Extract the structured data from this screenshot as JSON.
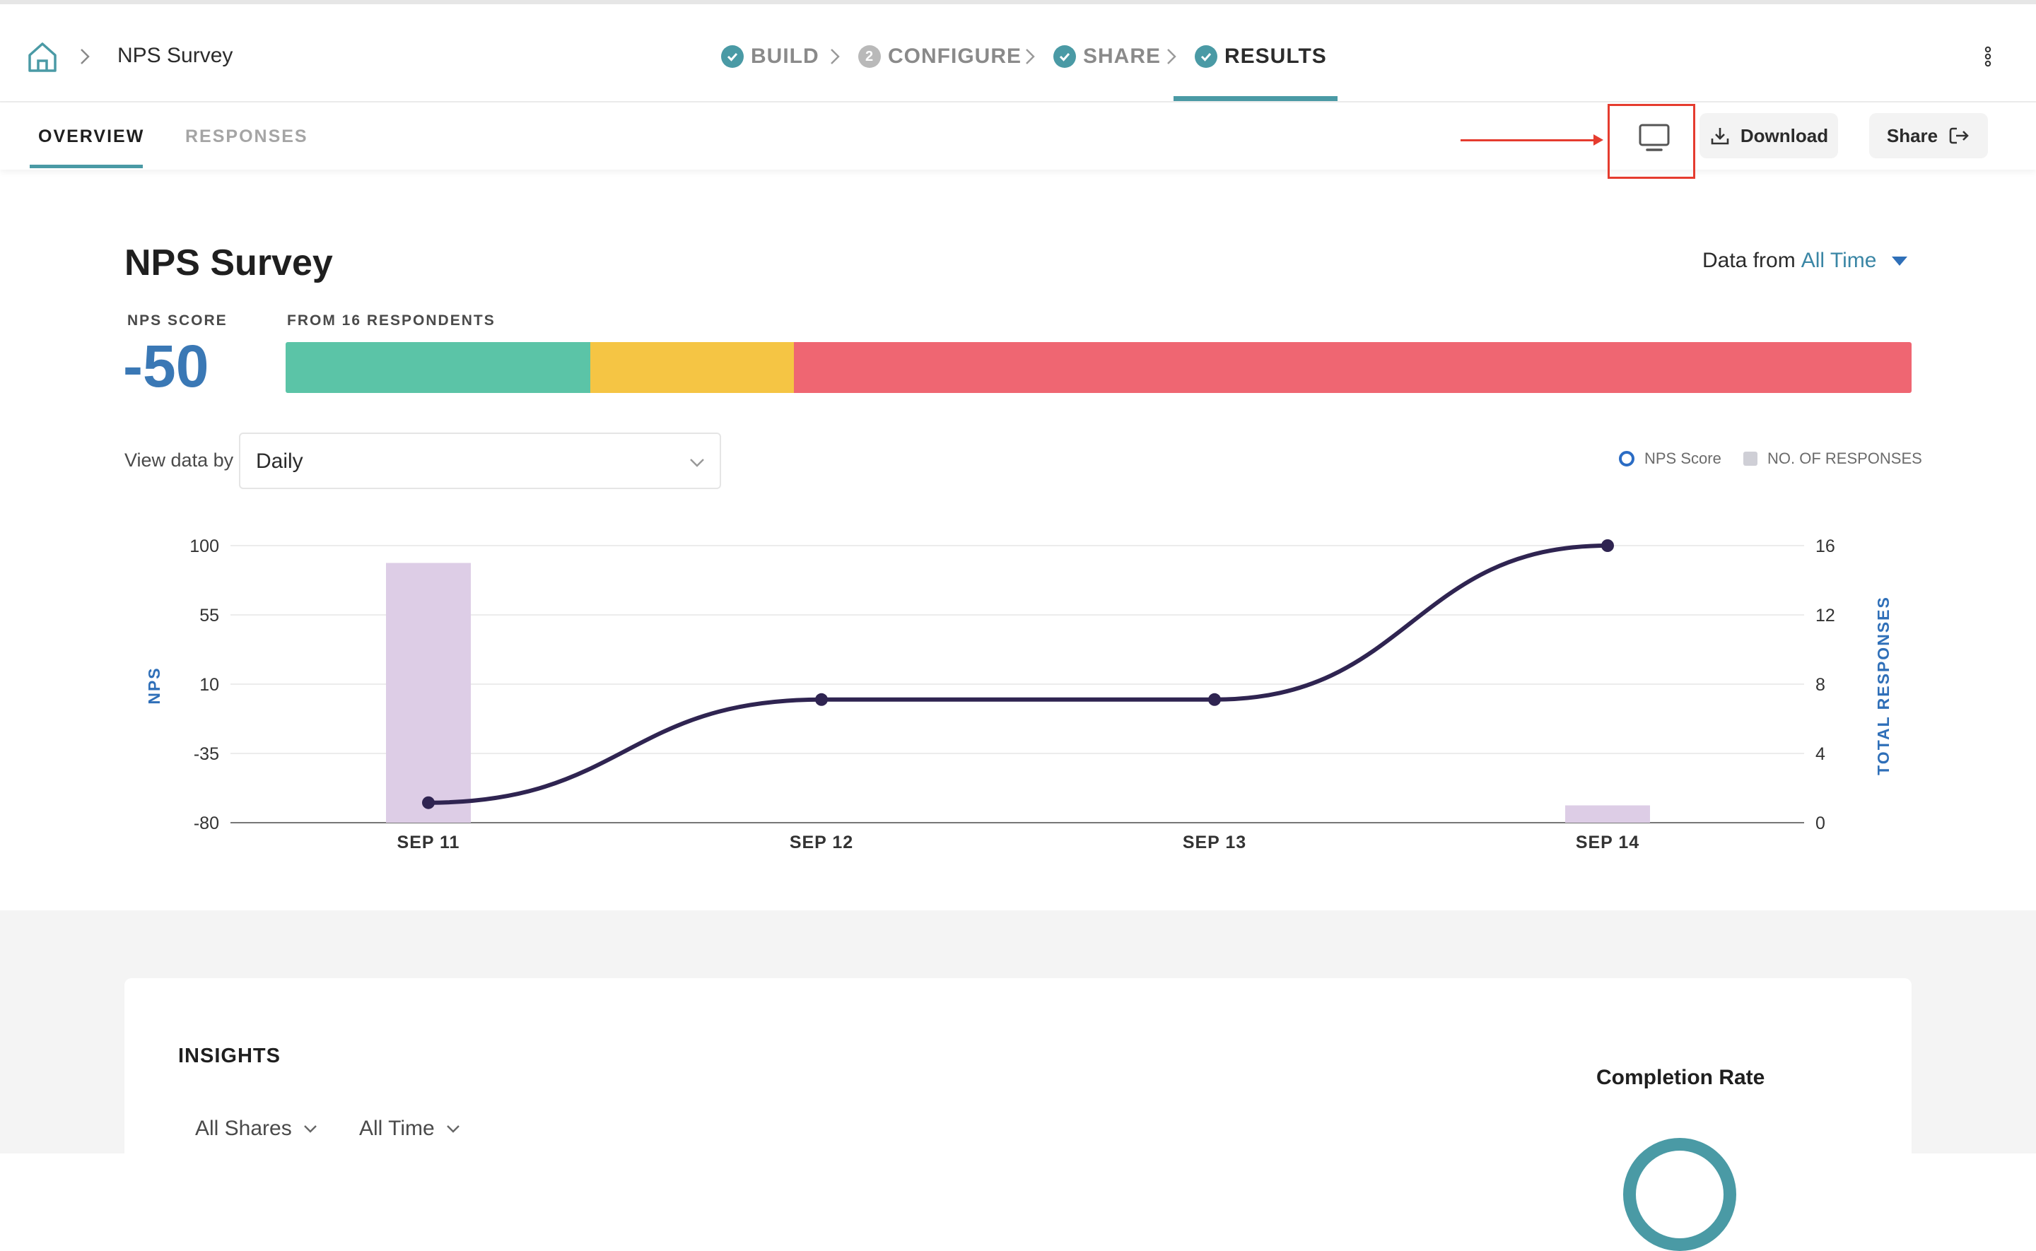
{
  "breadcrumb": {
    "title": "NPS Survey"
  },
  "steps": [
    {
      "label": "BUILD",
      "status": "done"
    },
    {
      "label": "CONFIGURE",
      "status": "pending",
      "number": "2"
    },
    {
      "label": "SHARE",
      "status": "done"
    },
    {
      "label": "RESULTS",
      "status": "active"
    }
  ],
  "tabs": [
    {
      "label": "OVERVIEW",
      "active": true
    },
    {
      "label": "RESPONSES",
      "active": false
    }
  ],
  "toolbar": {
    "present_icon": "monitor-icon",
    "download_label": "Download",
    "share_label": "Share"
  },
  "summary": {
    "title": "NPS Survey",
    "data_from_prefix": "Data from",
    "data_from_value": "All Time",
    "nps_score_label": "NPS SCORE",
    "nps_score": "-50",
    "respondents_label": "FROM 16 RESPONDENTS",
    "bar_fractions": {
      "promoters": 0.1875,
      "passives": 0.125,
      "detractors": 0.6875
    },
    "colors": {
      "promoters": "#5bc4a7",
      "passives": "#f5c544",
      "detractors": "#ef6672"
    }
  },
  "controls": {
    "view_by_label": "View data by",
    "view_by_value": "Daily",
    "legend_nps": "NPS Score",
    "legend_responses": "NO. OF RESPONSES"
  },
  "chart_data": {
    "type": "line",
    "categories": [
      "SEP 11",
      "SEP 12",
      "SEP 13",
      "SEP 14"
    ],
    "series": [
      {
        "name": "NPS Score",
        "type": "line",
        "axis": "left",
        "values": [
          -67,
          0,
          0,
          100
        ]
      },
      {
        "name": "NO. OF RESPONSES",
        "type": "bar",
        "axis": "right",
        "values": [
          15,
          0,
          0,
          1
        ]
      }
    ],
    "ylabel": "NPS",
    "y2label": "TOTAL RESPONSES",
    "yticks": [
      "100",
      "55",
      "10",
      "-35",
      "-80"
    ],
    "y2ticks": [
      "16",
      "12",
      "8",
      "4",
      "0"
    ],
    "ylim": [
      -80,
      100
    ],
    "y2lim": [
      0,
      16
    ],
    "grid": true,
    "legend": "top-right",
    "colors": {
      "line": "#2f2451",
      "bar": "#ddcde6"
    }
  },
  "insights": {
    "title": "INSIGHTS",
    "filters": [
      "All Shares",
      "All Time"
    ],
    "completion_title": "Completion Rate"
  }
}
